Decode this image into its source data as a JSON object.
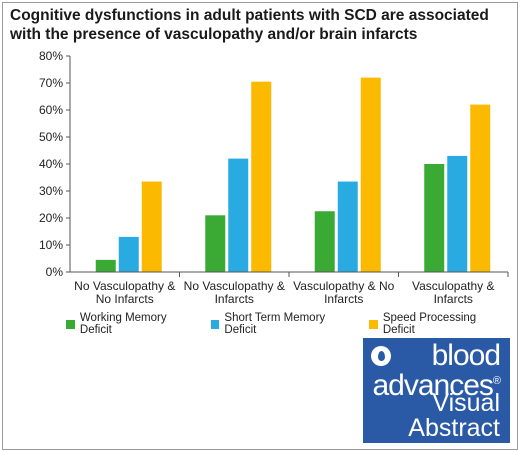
{
  "title": "Cognitive dysfunctions in adult patients with SCD are associated with the presence of vasculopathy and/or brain infarcts",
  "chart_data": {
    "type": "bar",
    "categories": [
      [
        "No Vasculopathy &",
        "No Infarcts"
      ],
      [
        "No Vasculopathy &",
        "Infarcts"
      ],
      [
        "Vasculopathy & No",
        "Infarcts"
      ],
      [
        "Vasculopathy &",
        "Infarcts"
      ]
    ],
    "series": [
      {
        "name": "Working Memory Deficit",
        "color": "#3aaa35",
        "values": [
          4.5,
          21,
          22.5,
          40
        ]
      },
      {
        "name": "Short Term Memory Deficit",
        "color": "#29abe2",
        "values": [
          13,
          42,
          33.5,
          43
        ]
      },
      {
        "name": "Speed Processing Deficit",
        "color": "#fbb900",
        "values": [
          33.5,
          70.5,
          72,
          62
        ]
      }
    ],
    "ylim": [
      0,
      80
    ],
    "yticks": [
      0,
      10,
      20,
      30,
      40,
      50,
      60,
      70,
      80
    ],
    "ytick_labels": [
      "0%",
      "10%",
      "20%",
      "30%",
      "40%",
      "50%",
      "60%",
      "70%",
      "80%"
    ],
    "grid": false,
    "legend_position": "bottom"
  },
  "logo": {
    "line1": "blood",
    "line2": "advances",
    "registered": "®",
    "line3": "Visual",
    "line4": "Abstract",
    "background": "#2a5aa6",
    "emblem_icon": "blood-drop-icon"
  }
}
